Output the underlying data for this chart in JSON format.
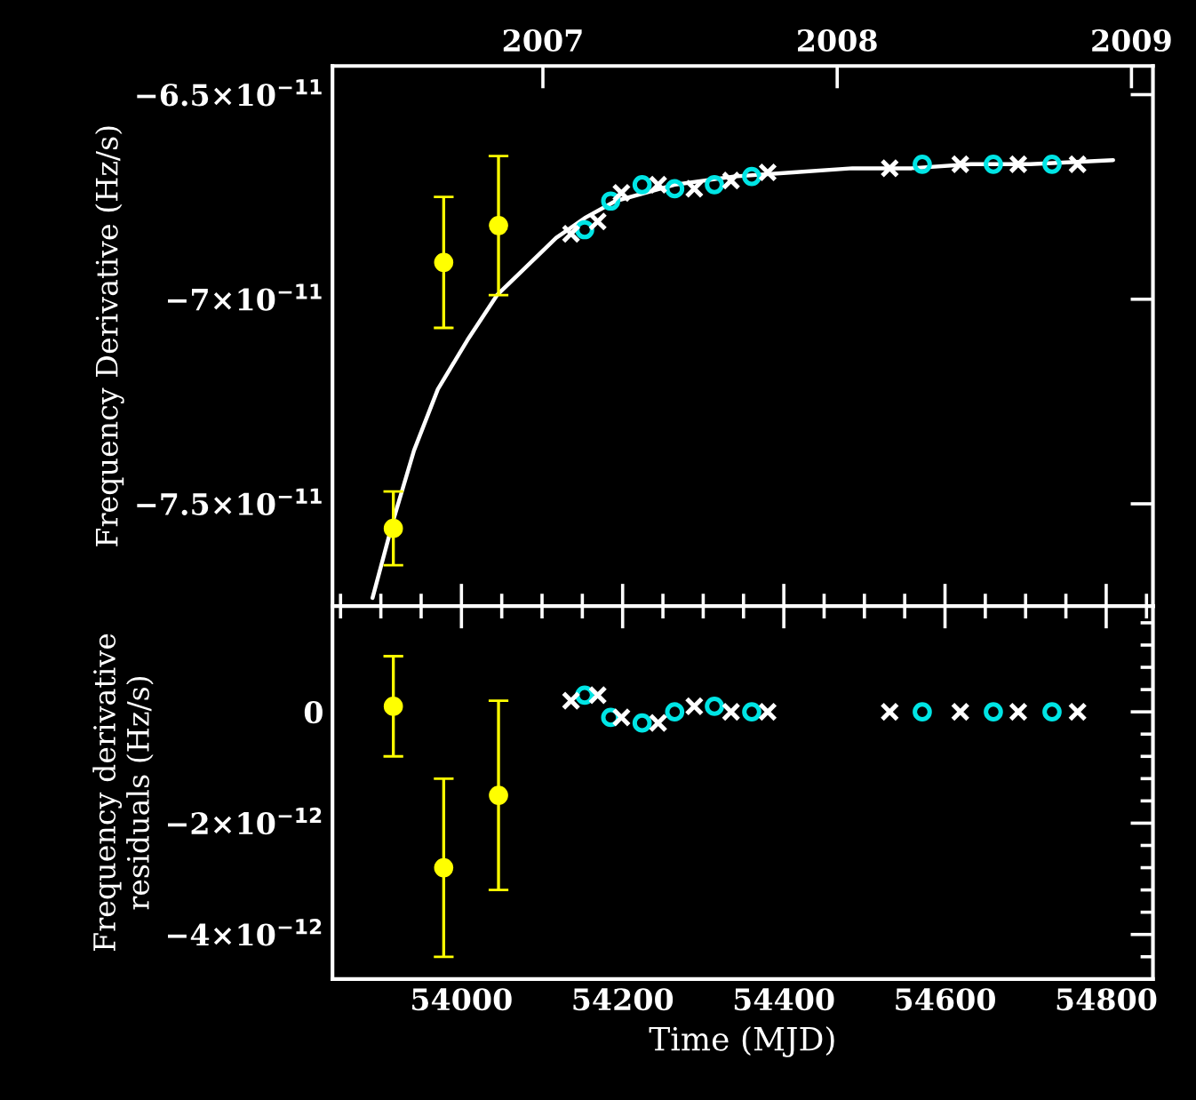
{
  "chart_data": [
    {
      "type": "scatter",
      "ylabel": "Frequency Derivative (Hz/s)",
      "xlim": [
        53840,
        54858
      ],
      "ylim": [
        -7.75e-11,
        -6.43e-11
      ],
      "yticks": [
        {
          "value": -7.5e-11,
          "label": "−7.5×10$^{−11}$"
        },
        {
          "value": -7e-11,
          "label": "−7×10$^{−11}$"
        },
        {
          "value": -6.5e-11,
          "label": "−6.5×10$^{−11}$"
        }
      ],
      "x2lim": [
        2006.285,
        2009.073
      ],
      "x2ticks": [
        2007,
        2008,
        2009
      ],
      "tick_labels": "y",
      "grid": false,
      "legend": false,
      "series": [
        {
          "type": "line",
          "color": "#ffffff",
          "marker": "none",
          "line_style": "solid",
          "x": [
            53889.7,
            53915.5,
            53941.1,
            53970.7,
            54007.4,
            54044.1,
            54080.9,
            54117.6,
            54154.4,
            54191.2,
            54227.9,
            54264.6,
            54338.1,
            54411.6,
            54485.1,
            54558.6,
            54632.1,
            54705.6,
            54808.6
          ],
          "values": [
            -7.73e-11,
            -7.54e-11,
            -7.37e-11,
            -7.22e-11,
            -7.1e-11,
            -6.99e-11,
            -6.92e-11,
            -6.85e-11,
            -6.8e-11,
            -6.76e-11,
            -6.74e-11,
            -6.72e-11,
            -6.7e-11,
            -6.69e-11,
            -6.68e-11,
            -6.68e-11,
            -6.67e-11,
            -6.67e-11,
            -6.66e-11
          ]
        },
        {
          "color": "#ffff00",
          "marker": "circle",
          "x": [
            53915.5,
            53978,
            54046
          ],
          "values": [
            -7.56e-11,
            -6.91e-11,
            -6.82e-11
          ],
          "errors": [
            9e-13,
            1.6e-12,
            1.7e-12
          ]
        },
        {
          "color": "#00e5e5",
          "marker": "circle",
          "x": [
            54152.9,
            54185.2,
            54224.2,
            54264.6,
            54313.9,
            54360.2,
            54571.8,
            54660.0,
            54732.8
          ],
          "values": [
            -6.83e-11,
            -6.76e-11,
            -6.72e-11,
            -6.73e-11,
            -6.72e-11,
            -6.7e-11,
            -6.67e-11,
            -6.67e-11,
            -6.67e-11
          ]
        },
        {
          "color": "#ffffff",
          "marker": "cross",
          "x": [
            54136.0,
            54169.1,
            54198.5,
            54244.1,
            54288.9,
            54334.5,
            54380.0,
            54531.4,
            54619.0,
            54690.9,
            54764.5
          ],
          "values": [
            -6.84e-11,
            -6.81e-11,
            -6.74e-11,
            -6.72e-11,
            -6.73e-11,
            -6.71e-11,
            -6.69e-11,
            -6.68e-11,
            -6.67e-11,
            -6.67e-11,
            -6.67e-11
          ]
        }
      ]
    },
    {
      "type": "scatter",
      "xlabel": "Time (MJD)",
      "ylabel": "Frequency derivative\nresiduals (Hz/s)",
      "xlim": [
        53840,
        54858
      ],
      "ylim": [
        -4.8e-12,
        1.9e-12
      ],
      "xticks": [
        54000,
        54200,
        54400,
        54600,
        54800
      ],
      "yticks": [
        {
          "value": -4e-12,
          "label": "−4×10$^{−12}$"
        },
        {
          "value": -2e-12,
          "label": "−2×10$^{−12}$"
        },
        {
          "value": 0,
          "label": "0"
        }
      ],
      "grid": false,
      "legend": false,
      "series": [
        {
          "color": "#ffff00",
          "marker": "circle",
          "x": [
            53915.5,
            53978,
            54046
          ],
          "values": [
            1e-13,
            -2.8e-12,
            -1.5e-12
          ],
          "errors": [
            9e-13,
            1.6e-12,
            1.7e-12
          ]
        },
        {
          "color": "#00e5e5",
          "marker": "circle",
          "x": [
            54152.9,
            54185.2,
            54224.2,
            54264.6,
            54313.9,
            54360.2,
            54571.8,
            54660.0,
            54732.8
          ],
          "values": [
            3e-13,
            -1e-13,
            -2e-13,
            0.0,
            1e-13,
            0.0,
            0.0,
            0.0,
            0.0
          ]
        },
        {
          "color": "#ffffff",
          "marker": "cross",
          "x": [
            54136.0,
            54169.1,
            54198.5,
            54244.1,
            54288.9,
            54334.5,
            54380.0,
            54531.4,
            54619.0,
            54690.9,
            54764.5
          ],
          "values": [
            2e-13,
            3e-13,
            -1e-13,
            -2e-13,
            1e-13,
            0.0,
            0.0,
            0.0,
            0.0,
            0.0,
            0.0
          ]
        }
      ]
    }
  ]
}
